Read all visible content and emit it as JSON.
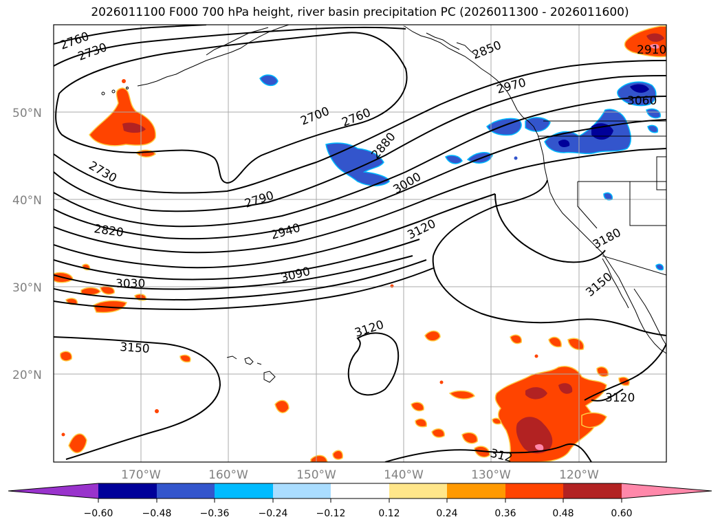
{
  "title": "2026011100 F000 700 hPa height, river basin precipitation PC (2026011300 - 2026011600)",
  "lat_labels": [
    "50°N",
    "40°N",
    "30°N",
    "20°N"
  ],
  "lon_labels": [
    "170°W",
    "160°W",
    "150°W",
    "140°W",
    "130°W",
    "120°W"
  ],
  "contour_labels": [
    "2760",
    "2730",
    "2700",
    "2760",
    "2850",
    "2970",
    "3060",
    "2910",
    "2880",
    "2730",
    "2790",
    "3000",
    "2820",
    "2940",
    "3120",
    "3180",
    "3030",
    "3090",
    "3150",
    "3120",
    "3150",
    "3120",
    "312"
  ],
  "colorbar": {
    "tick_labels": [
      "−0.60",
      "−0.48",
      "−0.36",
      "−0.24",
      "−0.12",
      "0.12",
      "0.24",
      "0.36",
      "0.48",
      "0.60"
    ],
    "colors": [
      "#9933cc",
      "#000099",
      "#3355cc",
      "#00bbff",
      "#aaddff",
      "#ffffff",
      "#ffe68a",
      "#ff9900",
      "#ff4400",
      "#b22222",
      "#ff88aa",
      "#ff88aa"
    ]
  },
  "legend_colors": {
    "grid": "#aaaaaa",
    "contour": "#000000",
    "axis_text": "#808080"
  }
}
